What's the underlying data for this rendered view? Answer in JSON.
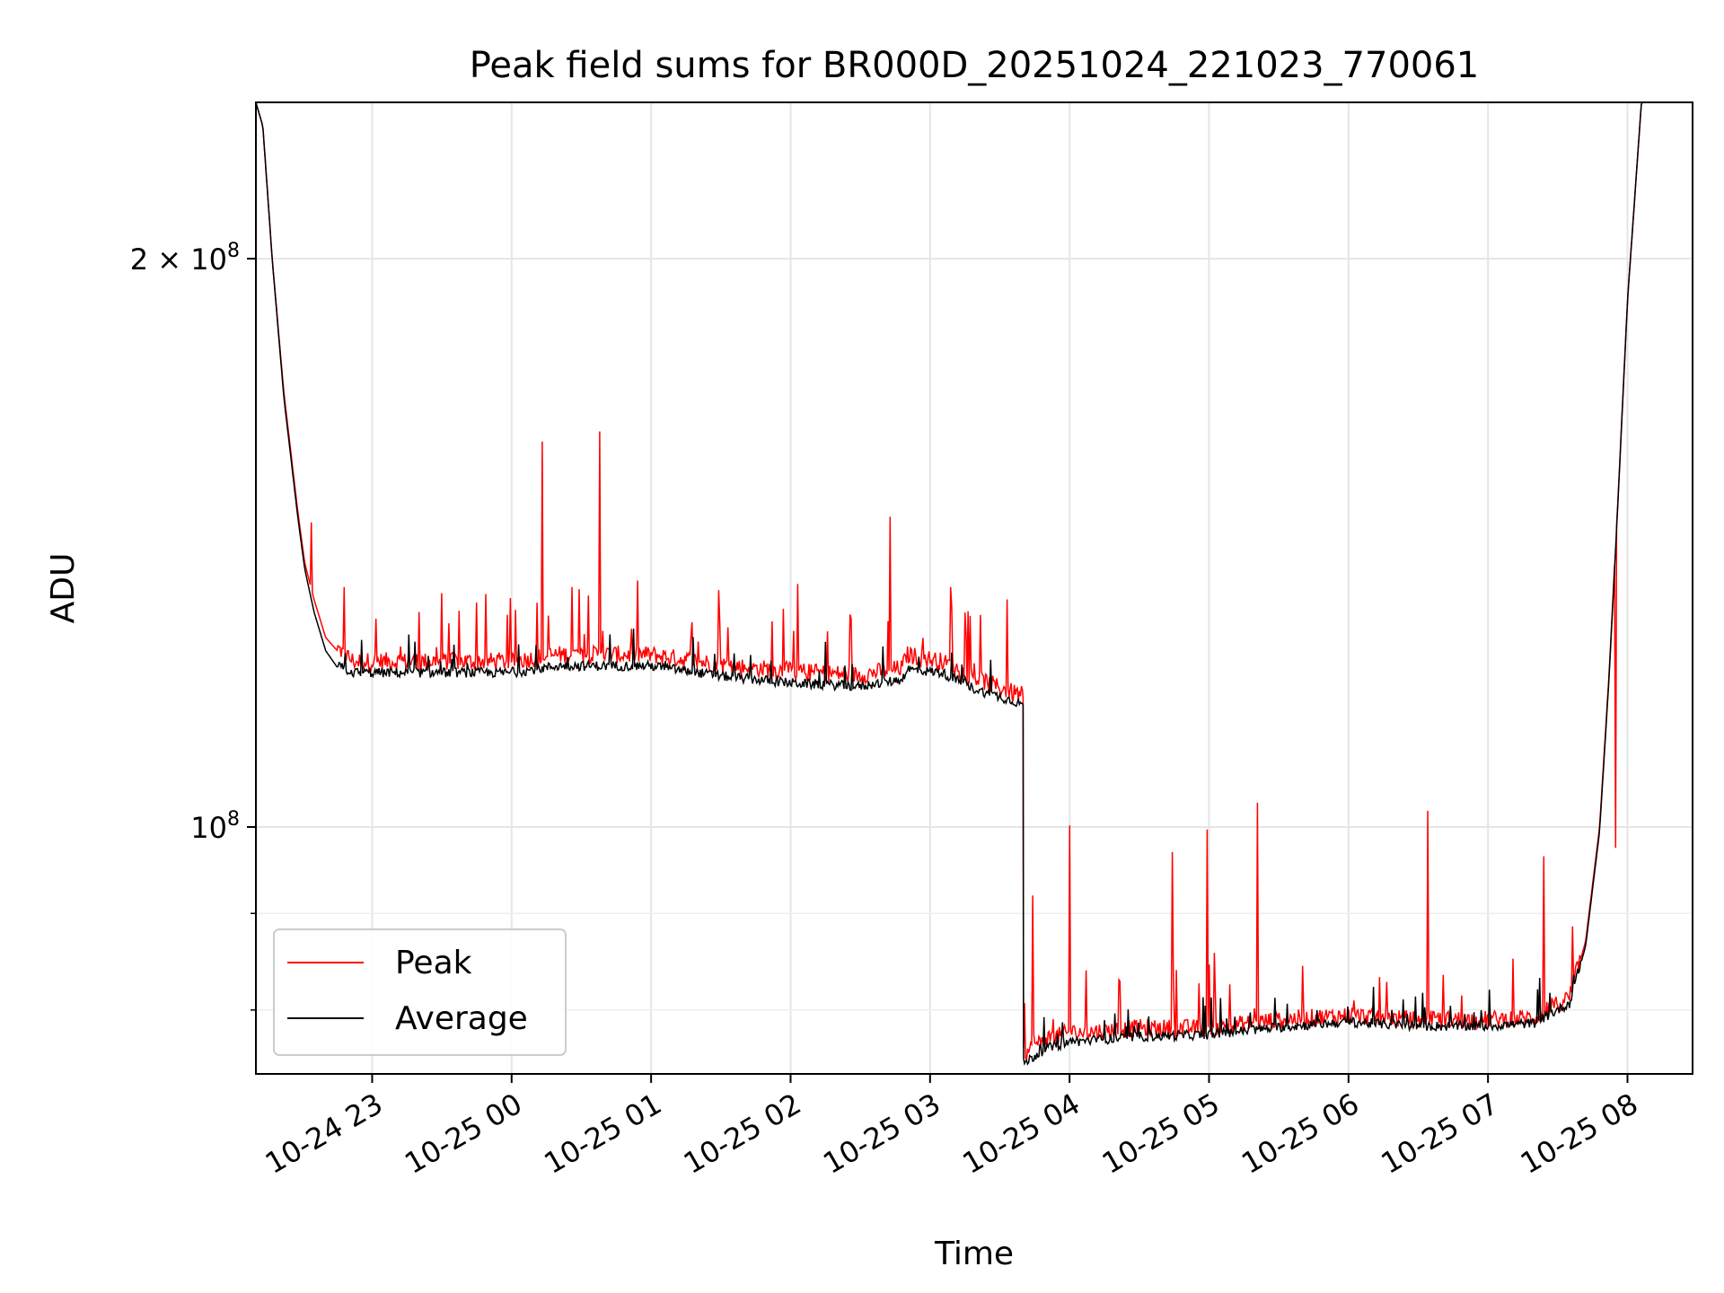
{
  "chart_data": {
    "type": "line",
    "title": "Peak field sums for BR000D_20251024_221023_770061",
    "xlabel": "Time",
    "ylabel": "ADU",
    "y_scale": "log",
    "grid": true,
    "legend_placement": "lower-left",
    "xlim": [
      "2025-10-24T22:10",
      "2025-10-25T08:28"
    ],
    "ylim": [
      74000000,
      242000000
    ],
    "x_ticks": [
      {
        "t": "2025-10-24T23:00",
        "label": "10-24 23"
      },
      {
        "t": "2025-10-25T00:00",
        "label": "10-25 00"
      },
      {
        "t": "2025-10-25T01:00",
        "label": "10-25 01"
      },
      {
        "t": "2025-10-25T02:00",
        "label": "10-25 02"
      },
      {
        "t": "2025-10-25T03:00",
        "label": "10-25 03"
      },
      {
        "t": "2025-10-25T04:00",
        "label": "10-25 04"
      },
      {
        "t": "2025-10-25T05:00",
        "label": "10-25 05"
      },
      {
        "t": "2025-10-25T06:00",
        "label": "10-25 06"
      },
      {
        "t": "2025-10-25T07:00",
        "label": "10-25 07"
      },
      {
        "t": "2025-10-25T08:00",
        "label": "10-25 08"
      }
    ],
    "y_ticks": [
      {
        "v": 100000000,
        "base": "10",
        "exp": "8"
      },
      {
        "v": 200000000,
        "base": "2 × 10",
        "exp": "8"
      }
    ],
    "series": [
      {
        "name": "Peak",
        "color": "#ff0000",
        "points": [
          [
            "2025-10-24T22:10",
            242000000
          ],
          [
            "2025-10-24T22:13",
            235000000
          ],
          [
            "2025-10-24T22:17",
            200000000
          ],
          [
            "2025-10-24T22:22",
            170000000
          ],
          [
            "2025-10-24T22:28",
            147000000
          ],
          [
            "2025-10-24T22:31",
            138000000
          ],
          [
            "2025-10-24T22:35",
            132000000
          ],
          [
            "2025-10-24T22:40",
            126000000
          ],
          [
            "2025-10-24T22:45",
            124000000
          ],
          [
            "2025-10-24T22:52",
            122000000
          ],
          [
            "2025-10-24T23:00",
            122000000
          ],
          [
            "2025-10-24T23:30",
            122000000
          ],
          [
            "2025-10-25T00:00",
            122000000
          ],
          [
            "2025-10-25T00:20",
            123000000
          ],
          [
            "2025-10-25T00:40",
            123000000
          ],
          [
            "2025-10-25T01:00",
            123000000
          ],
          [
            "2025-10-25T01:30",
            121500000
          ],
          [
            "2025-10-25T02:00",
            120500000
          ],
          [
            "2025-10-25T02:30",
            120000000
          ],
          [
            "2025-10-25T02:48",
            121000000
          ],
          [
            "2025-10-25T02:50",
            123000000
          ],
          [
            "2025-10-25T03:05",
            122000000
          ],
          [
            "2025-10-25T03:20",
            119500000
          ],
          [
            "2025-10-25T03:35",
            117500000
          ],
          [
            "2025-10-25T03:40",
            117000000
          ],
          [
            "2025-10-25T03:40",
            75500000
          ],
          [
            "2025-10-25T03:50",
            77000000
          ],
          [
            "2025-10-25T04:00",
            77500000
          ],
          [
            "2025-10-25T04:30",
            78000000
          ],
          [
            "2025-10-25T05:00",
            78000000
          ],
          [
            "2025-10-25T05:30",
            78800000
          ],
          [
            "2025-10-25T06:00",
            79200000
          ],
          [
            "2025-10-25T06:30",
            78800000
          ],
          [
            "2025-10-25T07:00",
            78800000
          ],
          [
            "2025-10-25T07:20",
            79000000
          ],
          [
            "2025-10-25T07:35",
            81000000
          ],
          [
            "2025-10-25T07:42",
            87000000
          ],
          [
            "2025-10-25T07:48",
            100000000
          ],
          [
            "2025-10-25T07:52",
            120000000
          ],
          [
            "2025-10-25T07:56",
            150000000
          ],
          [
            "2025-10-25T08:00",
            190000000
          ],
          [
            "2025-10-25T08:06",
            242000000
          ],
          [
            "2025-10-25T08:28",
            242000000
          ]
        ],
        "spikes": [
          [
            "2025-10-24T22:34",
            145000000
          ],
          [
            "2025-10-24T22:48",
            134000000
          ],
          [
            "2025-10-24T23:20",
            130000000
          ],
          [
            "2025-10-24T23:30",
            133000000
          ],
          [
            "2025-10-24T23:45",
            131500000
          ],
          [
            "2025-10-25T00:13",
            160000000
          ],
          [
            "2025-10-25T00:26",
            134000000
          ],
          [
            "2025-10-25T00:38",
            162000000
          ],
          [
            "2025-10-25T01:29",
            133500000
          ],
          [
            "2025-10-25T01:57",
            130500000
          ],
          [
            "2025-10-25T02:03",
            134500000
          ],
          [
            "2025-10-25T02:43",
            146000000
          ],
          [
            "2025-10-25T03:09",
            134000000
          ],
          [
            "2025-10-25T03:33",
            132000000
          ],
          [
            "2025-10-25T03:44",
            92000000
          ],
          [
            "2025-10-25T04:00",
            100200000
          ],
          [
            "2025-10-25T04:44",
            97000000
          ],
          [
            "2025-10-25T04:59",
            99700000
          ],
          [
            "2025-10-25T05:21",
            103000000
          ],
          [
            "2025-10-25T06:34",
            102000000
          ],
          [
            "2025-10-25T07:24",
            96500000
          ],
          [
            "2025-10-25T07:55",
            97500000
          ]
        ]
      },
      {
        "name": "Average",
        "color": "#000000",
        "points": [
          [
            "2025-10-24T22:10",
            242000000
          ],
          [
            "2025-10-24T22:13",
            235000000
          ],
          [
            "2025-10-24T22:17",
            200000000
          ],
          [
            "2025-10-24T22:22",
            169000000
          ],
          [
            "2025-10-24T22:28",
            146000000
          ],
          [
            "2025-10-24T22:31",
            137000000
          ],
          [
            "2025-10-24T22:35",
            130000000
          ],
          [
            "2025-10-24T22:40",
            124000000
          ],
          [
            "2025-10-24T22:45",
            121500000
          ],
          [
            "2025-10-24T22:52",
            120500000
          ],
          [
            "2025-10-24T23:00",
            120500000
          ],
          [
            "2025-10-24T23:30",
            120500000
          ],
          [
            "2025-10-25T00:00",
            120500000
          ],
          [
            "2025-10-25T00:20",
            121500000
          ],
          [
            "2025-10-25T00:40",
            121500000
          ],
          [
            "2025-10-25T01:00",
            121500000
          ],
          [
            "2025-10-25T01:30",
            120000000
          ],
          [
            "2025-10-25T02:00",
            119000000
          ],
          [
            "2025-10-25T02:30",
            118500000
          ],
          [
            "2025-10-25T02:48",
            119500000
          ],
          [
            "2025-10-25T02:50",
            121000000
          ],
          [
            "2025-10-25T03:05",
            120500000
          ],
          [
            "2025-10-25T03:20",
            118000000
          ],
          [
            "2025-10-25T03:35",
            116500000
          ],
          [
            "2025-10-25T03:40",
            116000000
          ],
          [
            "2025-10-25T03:40",
            74800000
          ],
          [
            "2025-10-25T03:50",
            76200000
          ],
          [
            "2025-10-25T04:00",
            76800000
          ],
          [
            "2025-10-25T04:30",
            77300000
          ],
          [
            "2025-10-25T05:00",
            77500000
          ],
          [
            "2025-10-25T05:30",
            78200000
          ],
          [
            "2025-10-25T06:00",
            78700000
          ],
          [
            "2025-10-25T06:30",
            78300000
          ],
          [
            "2025-10-25T07:00",
            78300000
          ],
          [
            "2025-10-25T07:20",
            78600000
          ],
          [
            "2025-10-25T07:35",
            80500000
          ],
          [
            "2025-10-25T07:42",
            86500000
          ],
          [
            "2025-10-25T07:48",
            99500000
          ],
          [
            "2025-10-25T07:52",
            119500000
          ],
          [
            "2025-10-25T07:56",
            149500000
          ],
          [
            "2025-10-25T08:00",
            190000000
          ],
          [
            "2025-10-25T08:06",
            242000000
          ],
          [
            "2025-10-25T08:28",
            242000000
          ]
        ]
      }
    ]
  }
}
